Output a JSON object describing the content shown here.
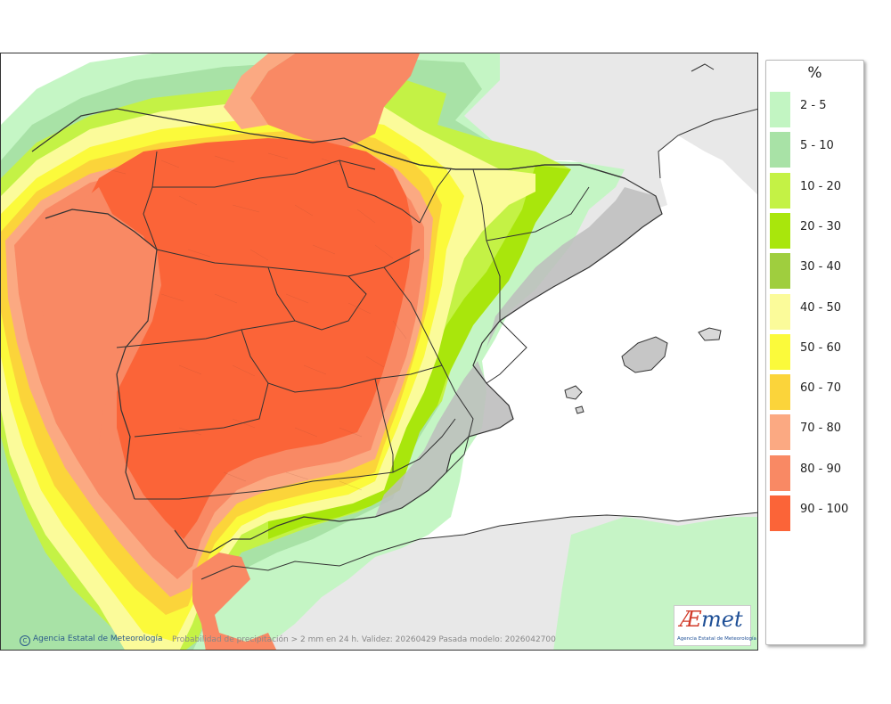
{
  "legend": {
    "title": "%",
    "classes": [
      {
        "label": "2 - 5",
        "color": "#c2f5c2"
      },
      {
        "label": "5 - 10",
        "color": "#a8e2a6"
      },
      {
        "label": "10 - 20",
        "color": "#c4f245"
      },
      {
        "label": "20 - 30",
        "color": "#a9e60c"
      },
      {
        "label": "30 - 40",
        "color": "#9fce3e"
      },
      {
        "label": "40 - 50",
        "color": "#fbfb9a"
      },
      {
        "label": "50 - 60",
        "color": "#fbfa3b"
      },
      {
        "label": "60 - 70",
        "color": "#fbd43a"
      },
      {
        "label": "70 - 80",
        "color": "#fba982"
      },
      {
        "label": "80 - 90",
        "color": "#f98964"
      },
      {
        "label": "90 - 100",
        "color": "#fb6438"
      }
    ]
  },
  "footer": {
    "agency": "Agencia Estatal de Meteorología",
    "caption": "Probabilidad de precipitación > 2 mm en 24 h. Validez: 20260429 Pasada modelo: 2026042700",
    "logo_word_ae": "Æ",
    "logo_word_rest": "met",
    "logo_sub": "Agencia Estatal de Meteorología"
  },
  "colors": {
    "land": "#e8e8e8",
    "sea": "#ffffff",
    "border": "#333333",
    "relief": "#b9b9b9"
  }
}
